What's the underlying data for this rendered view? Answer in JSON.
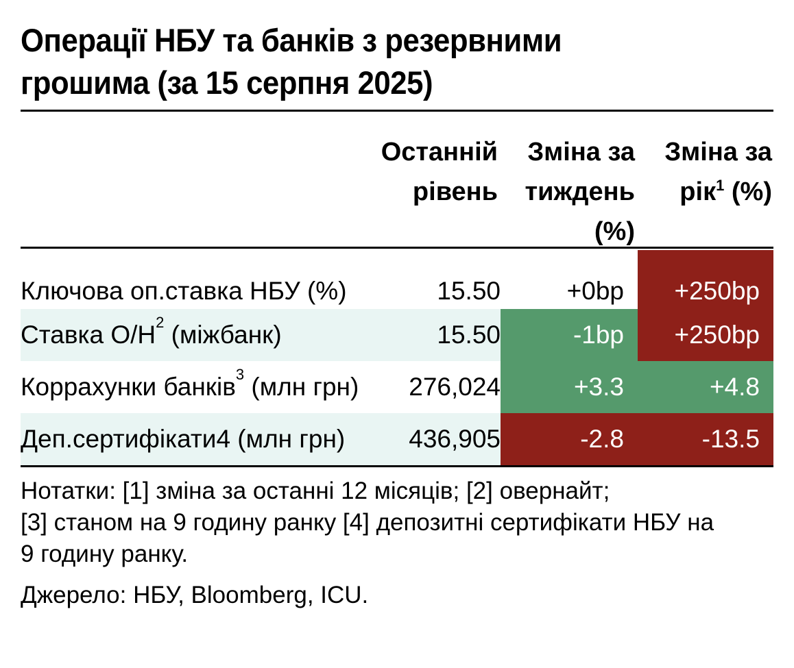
{
  "title_line1": "Операції НБУ та банків з резервними",
  "title_line2": "грошима (за 15 серпня 2025)",
  "headers": {
    "level": [
      "Останній",
      "рівень"
    ],
    "week": [
      "Зміна за",
      "тиждень",
      "(%)"
    ],
    "year_line1": "Зміна за",
    "year_line2_pre": "рік",
    "year_line2_sup": "1",
    "year_line2_post": " (%)"
  },
  "rows": [
    {
      "label": "Ключова оп.ставка НБУ (%)",
      "sup": "",
      "label_post": "",
      "level": "15.50",
      "week": "+0bp",
      "year": "+250bp",
      "week_color": "#ffffff",
      "year_color": "#8e2019"
    },
    {
      "label": "Ставка О/Н",
      "sup": "2",
      "label_post": " (міжбанк)",
      "level": "15.50",
      "week": "-1bp",
      "year": "+250bp",
      "week_color": "#559a6c",
      "year_color": "#8e2019"
    },
    {
      "label": "Коррахунки банків",
      "sup": "3",
      "label_post": " (млн грн)",
      "level": "276,024",
      "week": "+3.3",
      "year": "+4.8",
      "week_color": "#559a6c",
      "year_color": "#559a6c"
    },
    {
      "label": "Деп.сертифікати4 (млн грн)",
      "sup": "",
      "label_post": "",
      "level": "436,905",
      "week": "-2.8",
      "year": "-13.5",
      "week_color": "#8e2019",
      "year_color": "#8e2019"
    }
  ],
  "notes": [
    "Нотатки: [1] зміна за останні 12 місяців; [2] овернайт;",
    "[3] станом на 9 годину ранку [4] депозитні сертифікати НБУ на",
    "9 годину ранку."
  ],
  "source": "Джерело: НБУ, Bloomberg, ICU."
}
